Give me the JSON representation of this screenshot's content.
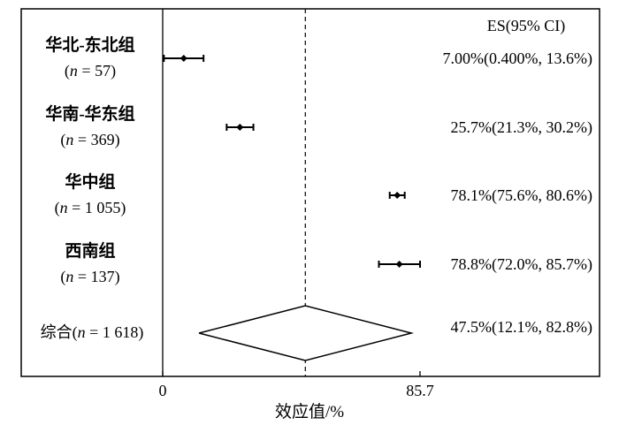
{
  "chart_data": {
    "type": "forest",
    "xlabel": "效应值/%",
    "xlim": [
      0,
      85.7
    ],
    "x_ticks": [
      "0",
      "85.7"
    ],
    "es_header": "ES(95% CI)",
    "rows": [
      {
        "label_line1": "华北-东北组",
        "label_line2_prefix": "(",
        "label_line2_n": "n",
        "label_line2_rest": " = 57)",
        "es": 7.0,
        "ci_low": 0.4,
        "ci_high": 13.6,
        "es_text": "7.00%(0.400%, 13.6%)"
      },
      {
        "label_line1": "华南-华东组",
        "label_line2_prefix": "(",
        "label_line2_n": "n",
        "label_line2_rest": " = 369)",
        "es": 25.7,
        "ci_low": 21.3,
        "ci_high": 30.2,
        "es_text": "25.7%(21.3%, 30.2%)"
      },
      {
        "label_line1": "华中组",
        "label_line2_prefix": "(",
        "label_line2_n": "n",
        "label_line2_rest": " = 1 055)",
        "es": 78.1,
        "ci_low": 75.6,
        "ci_high": 80.6,
        "es_text": "78.1%(75.6%, 80.6%)"
      },
      {
        "label_line1": "西南组",
        "label_line2_prefix": "(",
        "label_line2_n": "n",
        "label_line2_rest": " = 137)",
        "es": 78.8,
        "ci_low": 72.0,
        "ci_high": 85.7,
        "es_text": "78.8%(72.0%, 85.7%)"
      }
    ],
    "summary": {
      "label_prefix": "综合(",
      "label_n": "n",
      "label_rest": " = 1 618)",
      "es": 47.5,
      "ci_low": 12.1,
      "ci_high": 82.8,
      "es_text": "47.5%(12.1%, 82.8%)"
    },
    "reference_line": 47.5
  }
}
